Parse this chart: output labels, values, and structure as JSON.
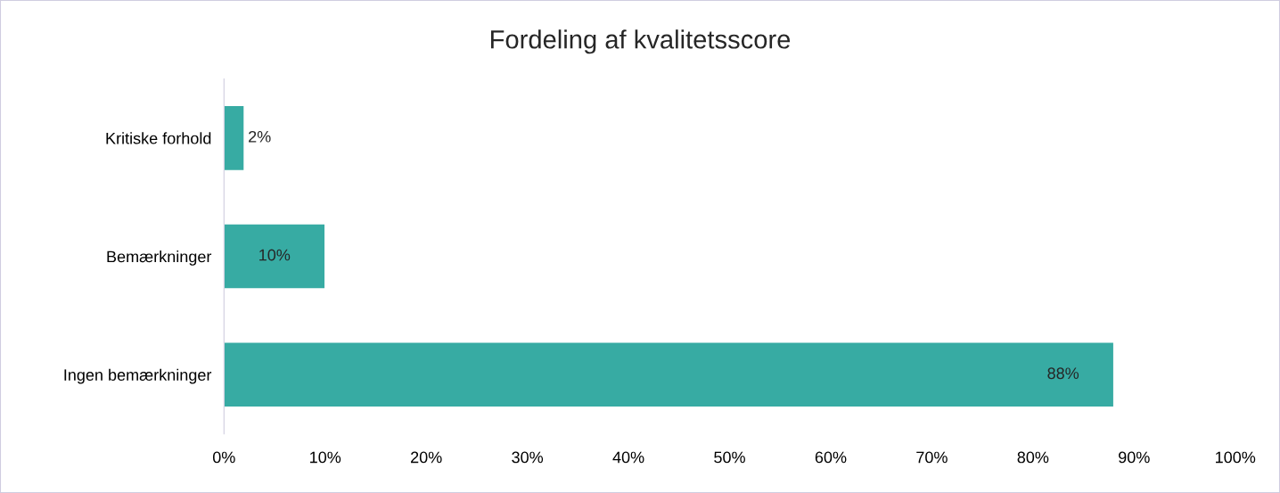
{
  "chart_data": {
    "type": "bar",
    "orientation": "horizontal",
    "title": "Fordeling af kvalitetsscore",
    "categories": [
      "Kritiske forhold",
      "Bemærkninger",
      "Ingen bemærkninger"
    ],
    "values": [
      2,
      10,
      88
    ],
    "value_labels": [
      "2%",
      "10%",
      "88%"
    ],
    "color": "#37aba3",
    "xlim": [
      0,
      100
    ],
    "xticks": [
      {
        "value": 0,
        "label": "0%"
      },
      {
        "value": 10,
        "label": "10%"
      },
      {
        "value": 20,
        "label": "20%"
      },
      {
        "value": 30,
        "label": "30%"
      },
      {
        "value": 40,
        "label": "40%"
      },
      {
        "value": 50,
        "label": "50%"
      },
      {
        "value": 60,
        "label": "60%"
      },
      {
        "value": 70,
        "label": "70%"
      },
      {
        "value": 80,
        "label": "80%"
      },
      {
        "value": 90,
        "label": "90%"
      },
      {
        "value": 100,
        "label": "100%"
      }
    ],
    "grid": false,
    "legend": false
  }
}
